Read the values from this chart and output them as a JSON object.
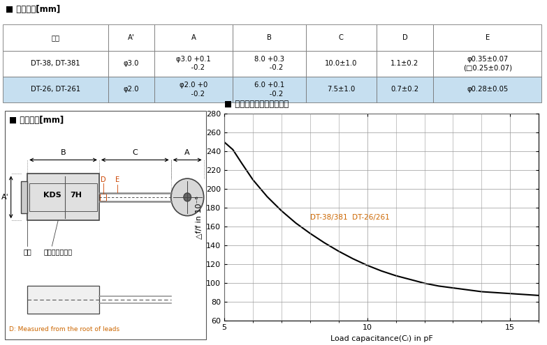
{
  "title_table": "■ 外形尺法[mm]",
  "table_headers": [
    "型名",
    "A'",
    "A",
    "B",
    "C",
    "D",
    "E"
  ],
  "row1": [
    "DT-38, DT-381",
    "φ3.0",
    "φ3.0 +0.1\n    -0.2",
    "8.0 +0.3\n      -0.2",
    "10.0±1.0",
    "1.1±0.2",
    "φ0.35±0.07\n(□0.25±0.07)"
  ],
  "row2": [
    "DT-26, DT-261",
    "φ2.0",
    "φ2.0 +0\n    -0.2",
    "6.0 +0.1\n      -0.2",
    "7.5±1.0",
    "0.7±0.2",
    "φ0.28±0.05"
  ],
  "header_bg": "#c6dff0",
  "title_dim": "■ 外形尺法[mm]",
  "title_chart": "■ 負荷容量特性（代表例）",
  "xlabel": "Load capacitance(Cₗ) in pF",
  "ylabel": "△f/f in 10⁻⁶",
  "curve_x": [
    5,
    5.3,
    5.6,
    6.0,
    6.5,
    7.0,
    7.5,
    8.0,
    8.5,
    9.0,
    9.5,
    10.0,
    10.5,
    11.0,
    11.5,
    12.0,
    12.5,
    13.0,
    13.5,
    14.0,
    14.5,
    15.0,
    15.5,
    16.0
  ],
  "curve_y": [
    250,
    242,
    228,
    210,
    192,
    177,
    164,
    153,
    143,
    134,
    126,
    119,
    113,
    108,
    104,
    100,
    97,
    95,
    93,
    91,
    90,
    89,
    88,
    87
  ],
  "xmin": 5,
  "xmax": 16,
  "ymin": 60,
  "ymax": 280,
  "yticks": [
    60,
    80,
    100,
    120,
    140,
    160,
    180,
    200,
    220,
    240,
    260,
    280
  ],
  "xticks": [
    5,
    10,
    15
  ],
  "grid_color": "#999999",
  "curve_color": "#000000",
  "label_color": "#cc6600",
  "note_text": "D: Measured from the root of leads",
  "note_color": "#cc6600",
  "company_label": "社名",
  "lot_label": "製造ロット番号",
  "body_label": "KDS 7H"
}
